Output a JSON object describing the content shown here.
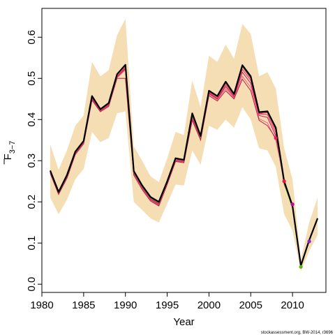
{
  "chart_data": {
    "type": "line",
    "xlabel": "Year",
    "ylabel_main": "F",
    "ylabel_sub": "3−7",
    "footnote": "stockassessment.org, BW-2014, r3696",
    "xlim": [
      1980,
      2014
    ],
    "ylim": [
      -0.02,
      0.67
    ],
    "x_ticks": [
      1980,
      1985,
      1990,
      1995,
      2000,
      2005,
      2010
    ],
    "y_ticks": [
      0.0,
      0.1,
      0.2,
      0.3,
      0.4,
      0.5,
      0.6
    ],
    "y_tick_labels": [
      "0.0",
      "0.1",
      "0.2",
      "0.3",
      "0.4",
      "0.5",
      "0.6"
    ],
    "grid": false,
    "colors": {
      "band": "#f5deb3",
      "main": "#000000",
      "retro_lines": [
        "#e8193c",
        "#d63060",
        "#c8185a",
        "#f06080",
        "#b41e50",
        "#e04070"
      ],
      "green": "#44aa00",
      "points": [
        "#dd2255",
        "#ee1144",
        "#cc00aa",
        "#55bb00",
        "#8822cc"
      ]
    },
    "series": [
      {
        "role": "estimate",
        "x": [
          1981,
          1982,
          1983,
          1984,
          1985,
          1986,
          1987,
          1988,
          1989,
          1990,
          1991,
          1992,
          1993,
          1994,
          1995,
          1996,
          1997,
          1998,
          1999,
          2000,
          2001,
          2002,
          2003,
          2004,
          2005,
          2006,
          2007,
          2008,
          2009,
          2010,
          2011,
          2012,
          2013
        ],
        "values": [
          0.276,
          0.224,
          0.265,
          0.322,
          0.348,
          0.457,
          0.425,
          0.44,
          0.51,
          0.533,
          0.275,
          0.24,
          0.212,
          0.2,
          0.25,
          0.306,
          0.302,
          0.415,
          0.36,
          0.47,
          0.457,
          0.492,
          0.462,
          0.532,
          0.505,
          0.418,
          0.42,
          0.38,
          0.25,
          0.19,
          0.045,
          0.107,
          0.16
        ],
        "lower": [
          0.21,
          0.17,
          0.205,
          0.255,
          0.28,
          0.37,
          0.345,
          0.355,
          0.415,
          0.42,
          0.2,
          0.18,
          0.16,
          0.15,
          0.195,
          0.242,
          0.24,
          0.325,
          0.29,
          0.385,
          0.375,
          0.4,
          0.38,
          0.43,
          0.4,
          0.33,
          0.325,
          0.285,
          0.17,
          0.13,
          0.032,
          0.08,
          0.12
        ],
        "upper": [
          0.34,
          0.278,
          0.325,
          0.385,
          0.41,
          0.54,
          0.505,
          0.52,
          0.605,
          0.645,
          0.335,
          0.3,
          0.262,
          0.248,
          0.305,
          0.37,
          0.362,
          0.495,
          0.43,
          0.555,
          0.54,
          0.582,
          0.548,
          0.632,
          0.608,
          0.505,
          0.515,
          0.475,
          0.33,
          0.255,
          0.06,
          0.15,
          0.21
        ]
      }
    ],
    "retro": [
      {
        "x": [
          1981,
          1982,
          1983,
          1984,
          1985,
          1986,
          1987,
          1988,
          1989,
          1990,
          1991,
          1992,
          1993,
          1994,
          1995,
          1996,
          1997,
          1998,
          1999,
          2000,
          2001,
          2002,
          2003,
          2004,
          2005,
          2006,
          2007,
          2008,
          2009,
          2010,
          2011,
          2012
        ],
        "values": [
          0.274,
          0.222,
          0.262,
          0.32,
          0.346,
          0.452,
          0.424,
          0.437,
          0.505,
          0.528,
          0.272,
          0.237,
          0.209,
          0.196,
          0.248,
          0.304,
          0.3,
          0.41,
          0.357,
          0.467,
          0.455,
          0.488,
          0.46,
          0.528,
          0.5,
          0.415,
          0.417,
          0.375,
          0.245,
          0.191,
          0.046,
          0.104
        ]
      },
      {
        "x": [
          1981,
          1982,
          1983,
          1984,
          1985,
          1986,
          1987,
          1988,
          1989,
          1990,
          1991,
          1992,
          1993,
          1994,
          1995,
          1996,
          1997,
          1998,
          1999,
          2000,
          2001,
          2002,
          2003,
          2004,
          2005,
          2006,
          2007,
          2008,
          2009,
          2010,
          2011
        ],
        "values": [
          0.272,
          0.221,
          0.26,
          0.318,
          0.344,
          0.45,
          0.422,
          0.435,
          0.503,
          0.525,
          0.27,
          0.235,
          0.207,
          0.194,
          0.246,
          0.302,
          0.298,
          0.405,
          0.355,
          0.465,
          0.452,
          0.484,
          0.458,
          0.522,
          0.495,
          0.414,
          0.412,
          0.368,
          0.242,
          0.194,
          0.044
        ]
      },
      {
        "x": [
          1981,
          1982,
          1983,
          1984,
          1985,
          1986,
          1987,
          1988,
          1989,
          1990,
          1991,
          1992,
          1993,
          1994,
          1995,
          1996,
          1997,
          1998,
          1999,
          2000,
          2001,
          2002,
          2003,
          2004,
          2005,
          2006,
          2007,
          2008,
          2009,
          2010
        ],
        "values": [
          0.271,
          0.22,
          0.259,
          0.317,
          0.343,
          0.449,
          0.421,
          0.434,
          0.502,
          0.523,
          0.268,
          0.233,
          0.205,
          0.192,
          0.244,
          0.3,
          0.297,
          0.402,
          0.353,
          0.463,
          0.45,
          0.48,
          0.455,
          0.515,
          0.488,
          0.41,
          0.405,
          0.36,
          0.248,
          0.19
        ]
      },
      {
        "x": [
          1981,
          1982,
          1983,
          1984,
          1985,
          1986,
          1987,
          1988,
          1989,
          1990,
          1991,
          1992,
          1993,
          1994,
          1995,
          1996,
          1997,
          1998,
          1999,
          2000,
          2001,
          2002,
          2003,
          2004,
          2005,
          2006,
          2007,
          2008,
          2009
        ],
        "values": [
          0.27,
          0.219,
          0.258,
          0.316,
          0.342,
          0.448,
          0.42,
          0.433,
          0.501,
          0.521,
          0.267,
          0.232,
          0.204,
          0.191,
          0.243,
          0.299,
          0.296,
          0.4,
          0.352,
          0.461,
          0.448,
          0.475,
          0.452,
          0.505,
          0.478,
          0.402,
          0.392,
          0.35,
          0.25
        ]
      },
      {
        "x": [
          1981,
          1982,
          1983,
          1984,
          1985,
          1986,
          1987,
          1988,
          1989,
          1990,
          1991,
          1992,
          1993,
          1994,
          1995,
          1996,
          1997,
          1998,
          1999,
          2000,
          2001,
          2002,
          2003,
          2004,
          2005,
          2006,
          2007,
          2008
        ],
        "values": [
          0.269,
          0.218,
          0.257,
          0.315,
          0.341,
          0.447,
          0.419,
          0.432,
          0.5,
          0.5,
          0.265,
          0.23,
          0.202,
          0.19,
          0.242,
          0.298,
          0.295,
          0.398,
          0.35,
          0.458,
          0.445,
          0.47,
          0.45,
          0.498,
          0.47,
          0.398,
          0.385,
          0.355
        ]
      }
    ],
    "green_x": [
      1990,
      1991,
      1992,
      1993,
      1994,
      1995,
      1996,
      1997,
      1998,
      1999,
      2000,
      2001,
      2002,
      2003,
      2004,
      2005,
      2006,
      2007,
      2008,
      2009,
      2010,
      2011
    ],
    "green_values": [
      0.532,
      0.273,
      0.238,
      0.21,
      0.198,
      0.249,
      0.305,
      0.301,
      0.412,
      0.358,
      0.469,
      0.456,
      0.49,
      0.461,
      0.53,
      0.503,
      0.417,
      0.419,
      0.378,
      0.245,
      0.185,
      0.042
    ],
    "terminal_points": [
      {
        "x": 2008,
        "y": 0.355
      },
      {
        "x": 2009,
        "y": 0.25
      },
      {
        "x": 2010,
        "y": 0.194
      },
      {
        "x": 2011,
        "y": 0.042
      },
      {
        "x": 2012,
        "y": 0.104
      }
    ]
  }
}
